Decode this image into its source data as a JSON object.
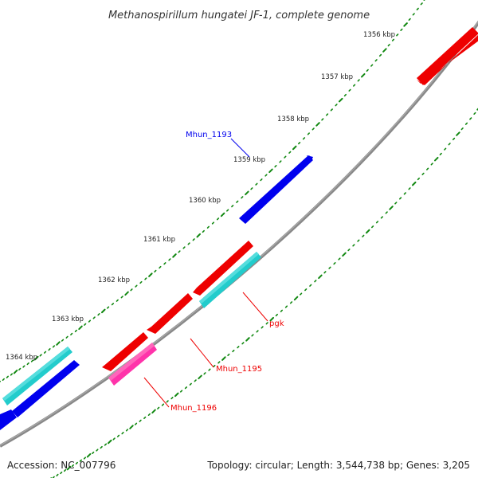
{
  "title": "Methanospirillum hungatei JF-1, complete genome",
  "ticks": [
    {
      "label": "1356 kbp"
    },
    {
      "label": "1357 kbp"
    },
    {
      "label": "1358 kbp"
    },
    {
      "label": "1359 kbp"
    },
    {
      "label": "1360 kbp"
    },
    {
      "label": "1361 kbp"
    },
    {
      "label": "1362 kbp"
    },
    {
      "label": "1363 kbp"
    },
    {
      "label": "1364 kbp"
    }
  ],
  "genes": [
    {
      "name": "Mhun_1193",
      "color": "#0000ee",
      "strand": "+"
    },
    {
      "name": "pgk",
      "color": "#22cccc",
      "strand": "-"
    },
    {
      "name": "Mhun_1195",
      "color": "#ee0000",
      "strand": "-"
    },
    {
      "name": "Mhun_1196",
      "color": "#ff33aa",
      "strand": "-"
    }
  ],
  "colors": {
    "backbone": "#888888",
    "ticks": "#118811",
    "forward_feature": "#0000ee",
    "reverse_feature": "#ee0000",
    "cyan_feature": "#22cccc",
    "magenta_feature": "#ff33aa"
  },
  "footer": {
    "accession": "Accession: NC_007796",
    "topology": "Topology: circular; Length: 3,544,738 bp; Genes: 3,205"
  }
}
